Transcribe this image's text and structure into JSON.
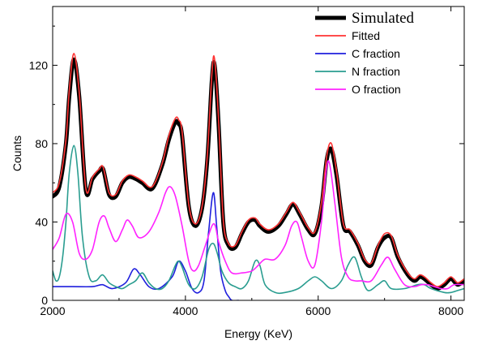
{
  "chart_data": {
    "type": "line",
    "title": "",
    "xlabel": "Energy (KeV)",
    "ylabel": "Counts",
    "xlim": [
      2000,
      8200
    ],
    "ylim": [
      0,
      150
    ],
    "xticks": [
      2000,
      4000,
      6000,
      8000
    ],
    "yticks": [
      0,
      40,
      80,
      120
    ],
    "grid": false,
    "legend_position": "top-right",
    "series": [
      {
        "name": "Simulated",
        "color": "#000000",
        "x": [
          2000,
          2100,
          2200,
          2250,
          2320,
          2400,
          2500,
          2600,
          2700,
          2760,
          2850,
          2950,
          3050,
          3150,
          3250,
          3350,
          3500,
          3650,
          3750,
          3850,
          3900,
          3950,
          4050,
          4150,
          4250,
          4330,
          4400,
          4440,
          4500,
          4570,
          4650,
          4750,
          4850,
          4950,
          5050,
          5120,
          5250,
          5400,
          5520,
          5620,
          5720,
          5850,
          5950,
          6050,
          6130,
          6200,
          6280,
          6380,
          6480,
          6600,
          6700,
          6800,
          6900,
          7000,
          7100,
          7200,
          7350,
          7450,
          7530,
          7600,
          7700,
          7800,
          7900,
          8000,
          8100,
          8200
        ],
        "y": [
          53,
          58,
          80,
          104,
          123,
          104,
          56,
          62,
          66,
          67,
          54,
          53,
          60,
          63,
          62,
          60,
          57,
          69,
          82,
          91,
          90,
          84,
          48,
          38,
          47,
          72,
          113,
          120,
          90,
          40,
          28,
          27,
          34,
          40,
          41,
          38,
          35,
          38,
          44,
          49,
          44,
          36,
          34,
          48,
          72,
          77,
          63,
          38,
          35,
          28,
          20,
          18,
          27,
          32,
          32,
          22,
          13,
          10,
          12,
          11,
          8,
          6,
          8,
          11,
          8,
          10
        ]
      },
      {
        "name": "Fitted",
        "color": "#ff3333",
        "x": [
          2000,
          2100,
          2200,
          2250,
          2320,
          2400,
          2500,
          2600,
          2700,
          2760,
          2850,
          2950,
          3050,
          3150,
          3250,
          3350,
          3500,
          3650,
          3750,
          3850,
          3900,
          3950,
          4050,
          4150,
          4250,
          4330,
          4400,
          4440,
          4500,
          4570,
          4650,
          4750,
          4850,
          4950,
          5050,
          5120,
          5250,
          5400,
          5520,
          5620,
          5720,
          5850,
          5950,
          6050,
          6130,
          6200,
          6280,
          6380,
          6480,
          6600,
          6700,
          6800,
          6900,
          7000,
          7100,
          7200,
          7350,
          7450,
          7530,
          7600,
          7700,
          7800,
          7900,
          8000,
          8100,
          8200
        ],
        "y": [
          55,
          60,
          82,
          107,
          126,
          106,
          57,
          63,
          67,
          68,
          55,
          54,
          61,
          64,
          63,
          61,
          58,
          70,
          84,
          93,
          92,
          86,
          49,
          39,
          48,
          74,
          116,
          123,
          92,
          41,
          29,
          28,
          35,
          41,
          42,
          39,
          36,
          39,
          45,
          50,
          45,
          37,
          35,
          50,
          74,
          80,
          65,
          39,
          36,
          29,
          21,
          19,
          28,
          34,
          33,
          23,
          14,
          11,
          13,
          12,
          9,
          7,
          9,
          12,
          9,
          11
        ]
      },
      {
        "name": "C fraction",
        "color": "#1f1fdd",
        "x": [
          2000,
          2300,
          2600,
          2750,
          2900,
          3100,
          3220,
          3320,
          3450,
          3600,
          3800,
          3900,
          4000,
          4100,
          4200,
          4280,
          4350,
          4420,
          4470,
          4530,
          4600,
          4650,
          4700,
          4800
        ],
        "y": [
          7,
          7,
          7,
          8,
          6,
          9,
          16,
          13,
          7,
          6,
          12,
          20,
          15,
          6,
          4,
          10,
          35,
          55,
          38,
          15,
          5,
          2,
          0,
          0
        ]
      },
      {
        "name": "N fraction",
        "color": "#2a9d90",
        "x": [
          2000,
          2050,
          2100,
          2150,
          2200,
          2250,
          2320,
          2380,
          2450,
          2550,
          2650,
          2750,
          2850,
          2950,
          3050,
          3150,
          3250,
          3350,
          3450,
          3550,
          3650,
          3750,
          3850,
          3900,
          3950,
          4050,
          4150,
          4250,
          4350,
          4420,
          4480,
          4550,
          4650,
          4750,
          4850,
          4950,
          5050,
          5120,
          5200,
          5350,
          5500,
          5700,
          5850,
          5950,
          6050,
          6200,
          6350,
          6450,
          6550,
          6650,
          6750,
          6900,
          7000,
          7100,
          7300,
          7500,
          7600,
          7700,
          7900,
          8000,
          8100,
          8200
        ],
        "y": [
          15,
          10,
          12,
          22,
          40,
          65,
          79,
          65,
          32,
          12,
          10,
          13,
          9,
          7,
          6,
          8,
          10,
          14,
          9,
          6,
          6,
          10,
          18,
          20,
          17,
          8,
          6,
          12,
          26,
          29,
          24,
          15,
          9,
          7,
          6,
          10,
          20,
          18,
          8,
          4,
          4,
          6,
          10,
          12,
          10,
          6,
          10,
          18,
          22,
          12,
          5,
          8,
          10,
          6,
          6,
          8,
          8,
          6,
          4,
          4,
          5,
          6
        ]
      },
      {
        "name": "O fraction",
        "color": "#ff22ff",
        "x": [
          2000,
          2100,
          2200,
          2300,
          2400,
          2500,
          2600,
          2700,
          2780,
          2850,
          2950,
          3050,
          3120,
          3200,
          3300,
          3450,
          3600,
          3700,
          3770,
          3850,
          3950,
          4050,
          4120,
          4200,
          4300,
          4400,
          4450,
          4500,
          4600,
          4700,
          4850,
          5000,
          5100,
          5200,
          5350,
          5500,
          5600,
          5680,
          5750,
          5850,
          5950,
          6050,
          6120,
          6170,
          6250,
          6350,
          6450,
          6550,
          6650,
          6800,
          6950,
          7050,
          7150,
          7300,
          7450,
          7550,
          7650,
          7750,
          7850,
          7950,
          8050,
          8200
        ],
        "y": [
          26,
          32,
          44,
          40,
          24,
          21,
          26,
          40,
          43,
          37,
          30,
          36,
          41,
          38,
          32,
          35,
          45,
          55,
          58,
          53,
          38,
          20,
          15,
          18,
          28,
          38,
          38,
          30,
          20,
          14,
          14,
          15,
          18,
          21,
          21,
          28,
          38,
          40,
          32,
          20,
          18,
          40,
          66,
          70,
          50,
          22,
          12,
          10,
          10,
          10,
          18,
          22,
          16,
          8,
          7,
          8,
          8,
          7,
          6,
          6,
          8,
          8
        ]
      }
    ]
  }
}
